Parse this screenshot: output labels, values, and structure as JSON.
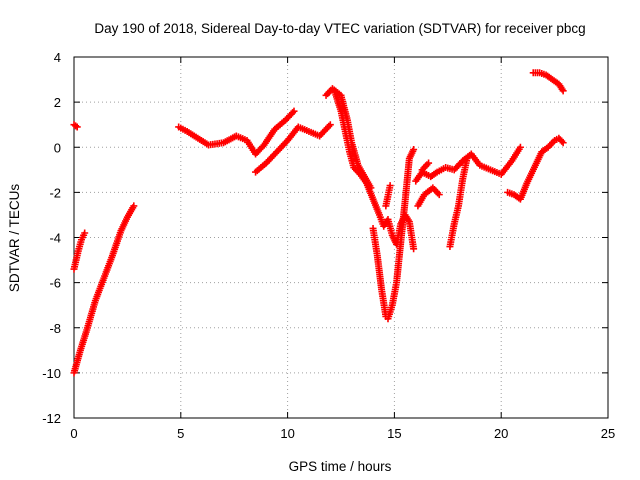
{
  "chart_data": {
    "type": "scatter",
    "title": "Day 190 of 2018, Sidereal Day-to-day VTEC variation (SDTVAR) for receiver pbcg",
    "xlabel": "GPS time / hours",
    "ylabel": "SDTVAR / TECUs",
    "xlim": [
      0,
      25
    ],
    "ylim": [
      -12,
      4
    ],
    "xticks": [
      "0",
      "5",
      "10",
      "15",
      "20",
      "25"
    ],
    "yticks": [
      "-12",
      "-10",
      "-8",
      "-6",
      "-4",
      "-2",
      "0",
      "2",
      "4"
    ],
    "grid": true,
    "marker": "+",
    "color": "#ff0000",
    "segments": [
      {
        "x": [
          0.0,
          0.15
        ],
        "y": [
          1.0,
          0.9
        ]
      },
      {
        "x": [
          0.0,
          0.2,
          0.35,
          0.5
        ],
        "y": [
          -5.4,
          -4.6,
          -4.1,
          -3.8
        ]
      },
      {
        "x": [
          0.0,
          0.3,
          0.6,
          1.0,
          1.4,
          1.8,
          2.2,
          2.5,
          2.8
        ],
        "y": [
          -10.0,
          -9.0,
          -8.1,
          -6.8,
          -5.8,
          -4.8,
          -3.7,
          -3.1,
          -2.6
        ]
      },
      {
        "x": [
          4.9,
          5.3,
          5.8,
          6.3,
          7.0,
          7.6,
          8.1,
          8.5,
          8.9,
          9.4,
          9.9,
          10.3
        ],
        "y": [
          0.9,
          0.7,
          0.4,
          0.1,
          0.2,
          0.5,
          0.3,
          -0.3,
          0.1,
          0.8,
          1.2,
          1.6
        ]
      },
      {
        "x": [
          8.5,
          9.0,
          9.5,
          10.0,
          10.5,
          11.0,
          11.5,
          12.0
        ],
        "y": [
          -1.1,
          -0.7,
          -0.2,
          0.3,
          0.9,
          0.7,
          0.5,
          1.0
        ]
      },
      {
        "x": [
          11.8,
          12.1,
          12.5,
          12.8,
          13.0,
          13.3,
          13.6,
          13.9
        ],
        "y": [
          2.3,
          2.6,
          2.3,
          1.2,
          0.2,
          -0.8,
          -1.3,
          -1.8
        ]
      },
      {
        "x": [
          12.2,
          12.5,
          12.7,
          12.9,
          13.1,
          13.4,
          13.7,
          14.0,
          14.3,
          14.5,
          14.7,
          14.9,
          15.1,
          15.3,
          15.5,
          15.7,
          15.9
        ],
        "y": [
          2.5,
          1.6,
          0.7,
          -0.2,
          -0.9,
          -1.2,
          -1.6,
          -2.3,
          -3.0,
          -3.5,
          -3.2,
          -3.9,
          -4.3,
          -3.4,
          -3.0,
          -3.3,
          -4.5
        ]
      },
      {
        "x": [
          14.0,
          14.2,
          14.4,
          14.6,
          14.7,
          14.9,
          15.1,
          15.3,
          15.5,
          15.7,
          15.9
        ],
        "y": [
          -3.6,
          -4.8,
          -6.3,
          -7.5,
          -7.6,
          -7.0,
          -6.0,
          -4.2,
          -2.4,
          -0.5,
          -0.1
        ]
      },
      {
        "x": [
          14.6,
          14.8
        ],
        "y": [
          -2.6,
          -1.7
        ]
      },
      {
        "x": [
          16.0,
          16.3,
          16.7,
          17.0,
          17.4,
          17.8,
          18.2,
          18.6,
          19.0,
          19.5,
          20.0,
          20.5,
          20.9
        ],
        "y": [
          -1.5,
          -1.1,
          -1.3,
          -1.1,
          -0.9,
          -1.0,
          -0.6,
          -0.3,
          -0.8,
          -1.0,
          -1.2,
          -0.6,
          0.0
        ]
      },
      {
        "x": [
          16.1,
          16.4,
          16.8,
          17.1
        ],
        "y": [
          -2.6,
          -2.1,
          -1.8,
          -2.1
        ]
      },
      {
        "x": [
          16.3,
          16.6
        ],
        "y": [
          -1.0,
          -0.7
        ]
      },
      {
        "x": [
          17.6,
          17.8,
          18.0,
          18.2,
          18.4
        ],
        "y": [
          -4.4,
          -3.4,
          -2.6,
          -1.4,
          -0.5
        ]
      },
      {
        "x": [
          20.3,
          20.6,
          20.9,
          21.2,
          21.6,
          21.9,
          22.2,
          22.5,
          22.7,
          22.9
        ],
        "y": [
          -2.0,
          -2.1,
          -2.3,
          -1.6,
          -0.8,
          -0.2,
          0.0,
          0.3,
          0.4,
          0.2
        ]
      },
      {
        "x": [
          21.5,
          21.8,
          22.1,
          22.4,
          22.7,
          22.9
        ],
        "y": [
          3.3,
          3.3,
          3.2,
          3.0,
          2.8,
          2.5
        ]
      }
    ]
  }
}
